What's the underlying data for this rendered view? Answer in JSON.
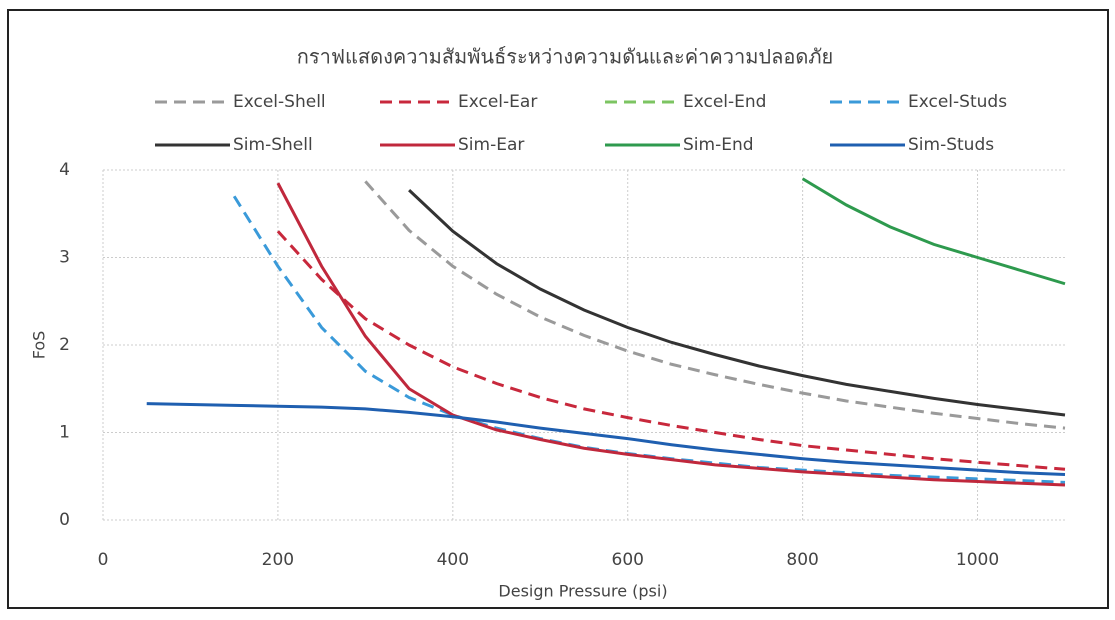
{
  "chart_data": {
    "type": "line",
    "title": "กราฟแสดงความสัมพันธ์ระหว่างความดันและค่าความปลอดภัย",
    "x_label": "Design Pressure (psi)",
    "y_label": "FoS",
    "x": [
      50,
      100,
      150,
      200,
      250,
      300,
      350,
      400,
      450,
      500,
      550,
      600,
      650,
      700,
      750,
      800,
      850,
      900,
      950,
      1000,
      1050,
      1100
    ],
    "xlim": [
      0,
      1100
    ],
    "xticks": [
      0,
      200,
      400,
      600,
      800,
      1000
    ],
    "ylim": [
      0,
      4
    ],
    "yticks": [
      0,
      1,
      2,
      3,
      4
    ],
    "grid": true,
    "series": [
      {
        "name": "Excel-Shell",
        "color": "#9a9a9a",
        "dash": true,
        "values": [
          null,
          null,
          null,
          null,
          null,
          3.87,
          3.31,
          2.9,
          2.58,
          2.32,
          2.11,
          1.93,
          1.78,
          1.66,
          1.55,
          1.45,
          1.36,
          1.29,
          1.22,
          1.16,
          1.1,
          1.05
        ]
      },
      {
        "name": "Excel-Ear",
        "color": "#c8283c",
        "dash": true,
        "values": [
          null,
          null,
          null,
          3.3,
          2.75,
          2.3,
          2.0,
          1.75,
          1.56,
          1.4,
          1.27,
          1.17,
          1.08,
          1.0,
          0.92,
          0.85,
          0.8,
          0.75,
          0.7,
          0.66,
          0.62,
          0.58
        ]
      },
      {
        "name": "Excel-End",
        "color": "#7cc462",
        "dash": true,
        "values": [
          null,
          null,
          null,
          null,
          null,
          null,
          null,
          null,
          null,
          null,
          null,
          null,
          null,
          null,
          null,
          null,
          null,
          null,
          null,
          null,
          null,
          null
        ]
      },
      {
        "name": "Excel-Studs",
        "color": "#3a9ad9",
        "dash": true,
        "values": [
          null,
          null,
          3.7,
          2.9,
          2.2,
          1.7,
          1.4,
          1.2,
          1.05,
          0.93,
          0.83,
          0.76,
          0.7,
          0.65,
          0.6,
          0.57,
          0.54,
          0.51,
          0.49,
          0.47,
          0.45,
          0.43
        ]
      },
      {
        "name": "Sim-Shell",
        "color": "#333333",
        "dash": false,
        "values": [
          null,
          null,
          null,
          null,
          null,
          null,
          3.77,
          3.3,
          2.93,
          2.64,
          2.4,
          2.2,
          2.03,
          1.89,
          1.76,
          1.65,
          1.55,
          1.47,
          1.39,
          1.32,
          1.26,
          1.2
        ]
      },
      {
        "name": "Sim-Ear",
        "color": "#c0283c",
        "dash": false,
        "values": [
          null,
          null,
          null,
          3.85,
          2.9,
          2.1,
          1.5,
          1.2,
          1.03,
          0.92,
          0.82,
          0.75,
          0.69,
          0.63,
          0.59,
          0.55,
          0.52,
          0.49,
          0.46,
          0.44,
          0.42,
          0.4
        ]
      },
      {
        "name": "Sim-End",
        "color": "#2e9a4e",
        "dash": false,
        "values": [
          null,
          null,
          null,
          null,
          null,
          null,
          null,
          null,
          null,
          null,
          null,
          null,
          null,
          null,
          null,
          3.9,
          3.6,
          3.35,
          3.15,
          3.0,
          2.85,
          2.7
        ]
      },
      {
        "name": "Sim-Studs",
        "color": "#1f5fb0",
        "dash": false,
        "values": [
          1.33,
          1.32,
          1.31,
          1.3,
          1.29,
          1.27,
          1.23,
          1.18,
          1.12,
          1.05,
          0.99,
          0.93,
          0.86,
          0.8,
          0.75,
          0.7,
          0.66,
          0.63,
          0.6,
          0.57,
          0.54,
          0.52
        ]
      }
    ]
  }
}
